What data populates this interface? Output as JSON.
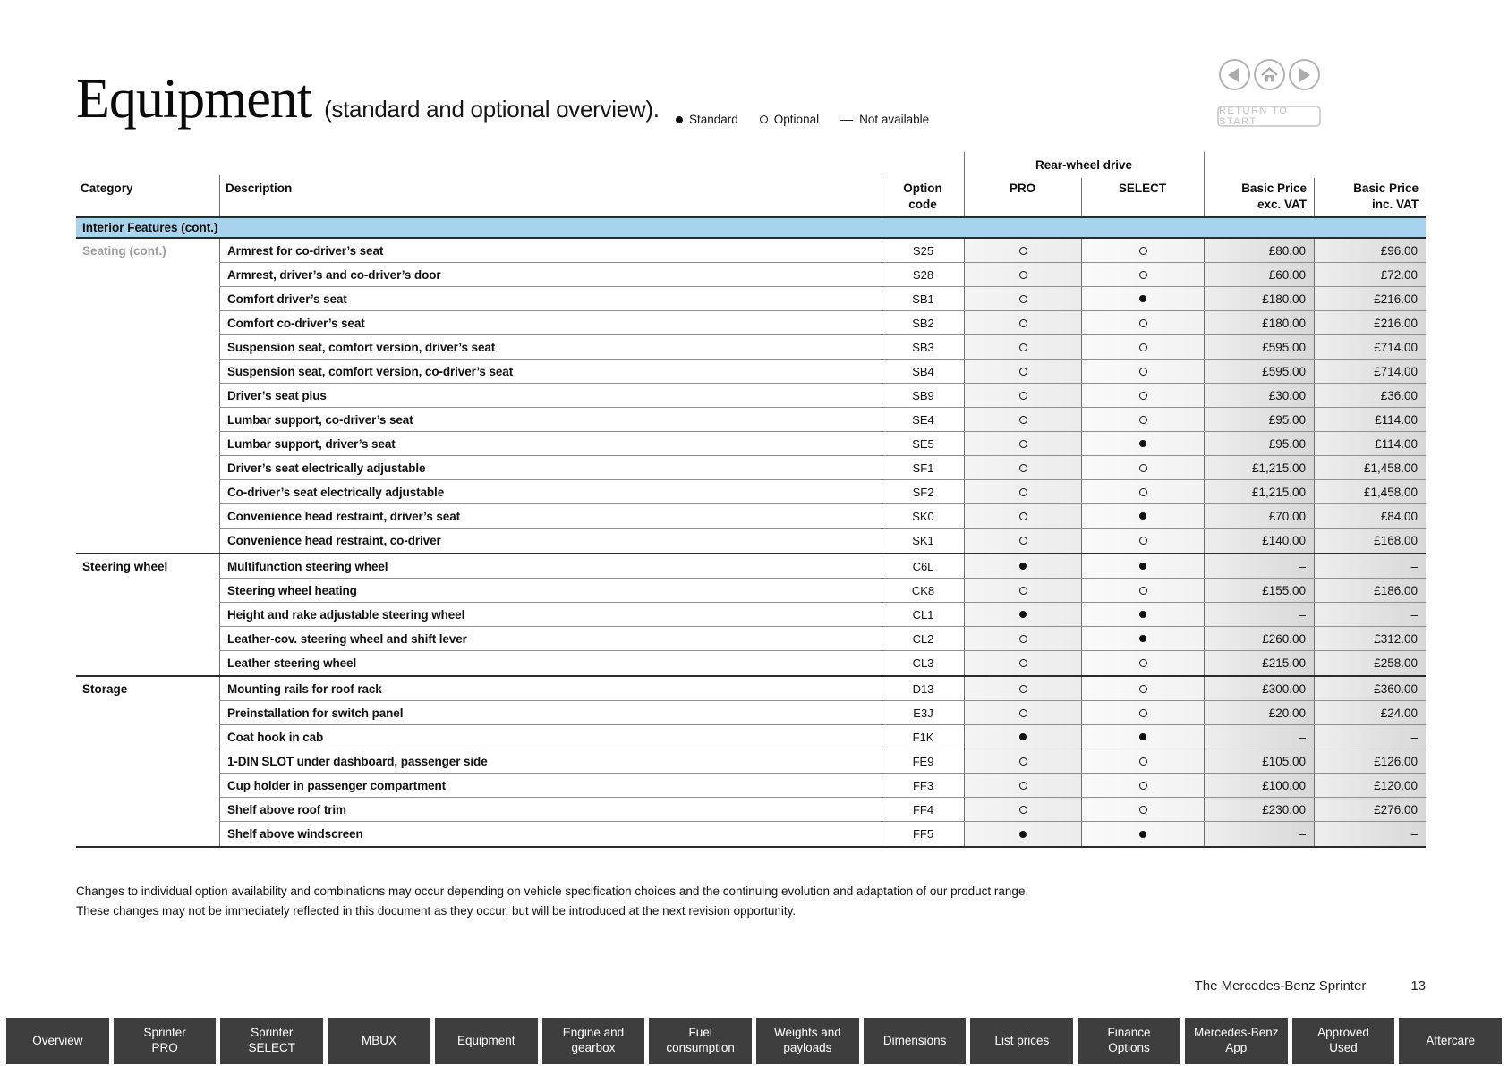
{
  "page": {
    "title": "Equipment",
    "subtitle": "(standard and optional overview).",
    "legend": [
      {
        "symbol": "standard",
        "label": "Standard"
      },
      {
        "symbol": "optional",
        "label": "Optional"
      },
      {
        "symbol": "not-available",
        "label": "Not available"
      }
    ],
    "colors": {
      "section_band": "#a8d3ee",
      "nav_tab": "#3e3e3e",
      "price_column": "#d8d8d8",
      "muted_category": "#9c9c9c"
    }
  },
  "nav_controls": {
    "return_label": "RETURN TO START"
  },
  "table": {
    "headers": {
      "category": "Category",
      "description": "Description",
      "option_code": "Option\ncode",
      "group": "Rear-wheel drive",
      "pro": "PRO",
      "select": "SELECT",
      "price_exc": "Basic Price\nexc. VAT",
      "price_inc": "Basic Price\ninc. VAT"
    },
    "section": "Interior Features (cont.)",
    "symbol_legend": {
      "f": "standard",
      "o": "optional"
    },
    "groups": [
      {
        "category": "Seating (cont.)",
        "muted": true,
        "rows": [
          {
            "d": "Armrest for co-driver’s seat",
            "c": "S25",
            "p": "o",
            "s": "o",
            "e": "£80.00",
            "i": "£96.00"
          },
          {
            "d": "Armrest, driver’s and co-driver’s door",
            "c": "S28",
            "p": "o",
            "s": "o",
            "e": "£60.00",
            "i": "£72.00"
          },
          {
            "d": "Comfort driver’s seat",
            "c": "SB1",
            "p": "o",
            "s": "f",
            "e": "£180.00",
            "i": "£216.00"
          },
          {
            "d": "Comfort co-driver’s seat",
            "c": "SB2",
            "p": "o",
            "s": "o",
            "e": "£180.00",
            "i": "£216.00"
          },
          {
            "d": "Suspension seat, comfort version, driver’s seat",
            "c": "SB3",
            "p": "o",
            "s": "o",
            "e": "£595.00",
            "i": "£714.00"
          },
          {
            "d": "Suspension seat, comfort version, co-driver’s seat",
            "c": "SB4",
            "p": "o",
            "s": "o",
            "e": "£595.00",
            "i": "£714.00"
          },
          {
            "d": "Driver’s seat plus",
            "c": "SB9",
            "p": "o",
            "s": "o",
            "e": "£30.00",
            "i": "£36.00"
          },
          {
            "d": "Lumbar support, co-driver’s seat",
            "c": "SE4",
            "p": "o",
            "s": "o",
            "e": "£95.00",
            "i": "£114.00"
          },
          {
            "d": "Lumbar support, driver’s seat",
            "c": "SE5",
            "p": "o",
            "s": "f",
            "e": "£95.00",
            "i": "£114.00"
          },
          {
            "d": "Driver’s seat electrically adjustable",
            "c": "SF1",
            "p": "o",
            "s": "o",
            "e": "£1,215.00",
            "i": "£1,458.00"
          },
          {
            "d": "Co-driver’s seat electrically adjustable",
            "c": "SF2",
            "p": "o",
            "s": "o",
            "e": "£1,215.00",
            "i": "£1,458.00"
          },
          {
            "d": "Convenience head restraint, driver’s seat",
            "c": "SK0",
            "p": "o",
            "s": "f",
            "e": "£70.00",
            "i": "£84.00"
          },
          {
            "d": "Convenience head restraint, co-driver",
            "c": "SK1",
            "p": "o",
            "s": "o",
            "e": "£140.00",
            "i": "£168.00"
          }
        ]
      },
      {
        "category": "Steering wheel",
        "muted": false,
        "rows": [
          {
            "d": "Multifunction steering wheel",
            "c": "C6L",
            "p": "f",
            "s": "f",
            "e": "–",
            "i": "–"
          },
          {
            "d": "Steering wheel heating",
            "c": "CK8",
            "p": "o",
            "s": "o",
            "e": "£155.00",
            "i": "£186.00"
          },
          {
            "d": "Height and rake adjustable steering wheel",
            "c": "CL1",
            "p": "f",
            "s": "f",
            "e": "–",
            "i": "–"
          },
          {
            "d": "Leather-cov. steering wheel and shift lever",
            "c": "CL2",
            "p": "o",
            "s": "f",
            "e": "£260.00",
            "i": "£312.00"
          },
          {
            "d": "Leather steering wheel",
            "c": "CL3",
            "p": "o",
            "s": "o",
            "e": "£215.00",
            "i": "£258.00"
          }
        ]
      },
      {
        "category": "Storage",
        "muted": false,
        "rows": [
          {
            "d": "Mounting rails for roof rack",
            "c": "D13",
            "p": "o",
            "s": "o",
            "e": "£300.00",
            "i": "£360.00"
          },
          {
            "d": "Preinstallation for switch panel",
            "c": "E3J",
            "p": "o",
            "s": "o",
            "e": "£20.00",
            "i": "£24.00"
          },
          {
            "d": "Coat hook in cab",
            "c": "F1K",
            "p": "f",
            "s": "f",
            "e": "–",
            "i": "–"
          },
          {
            "d": "1-DIN SLOT under dashboard, passenger side",
            "c": "FE9",
            "p": "o",
            "s": "o",
            "e": "£105.00",
            "i": "£126.00"
          },
          {
            "d": "Cup holder in passenger compartment",
            "c": "FF3",
            "p": "o",
            "s": "o",
            "e": "£100.00",
            "i": "£120.00"
          },
          {
            "d": "Shelf above roof trim",
            "c": "FF4",
            "p": "o",
            "s": "o",
            "e": "£230.00",
            "i": "£276.00"
          },
          {
            "d": "Shelf above windscreen",
            "c": "FF5",
            "p": "f",
            "s": "f",
            "e": "–",
            "i": "–"
          }
        ]
      }
    ]
  },
  "footer": {
    "line1": "Changes to individual option availability and combinations may occur depending on vehicle specification choices and the continuing evolution and adaptation of our product range.",
    "line2": "These changes may not be immediately reflected in this document as they occur, but will be introduced at the next revision opportunity.",
    "brand": "The Mercedes-Benz Sprinter",
    "page_number": "13"
  },
  "bottom_nav": {
    "tabs": [
      {
        "label": "Overview"
      },
      {
        "label": "Sprinter\nPRO"
      },
      {
        "label": "Sprinter\nSELECT"
      },
      {
        "label": "MBUX"
      },
      {
        "label": "Equipment"
      },
      {
        "label": "Engine and\ngearbox"
      },
      {
        "label": "Fuel\nconsumption"
      },
      {
        "label": "Weights and\npayloads"
      },
      {
        "label": "Dimensions"
      },
      {
        "label": "List prices"
      },
      {
        "label": "Finance\nOptions"
      },
      {
        "label": "Mercedes-Benz\nApp"
      },
      {
        "label": "Approved\nUsed"
      },
      {
        "label": "Aftercare"
      }
    ]
  }
}
